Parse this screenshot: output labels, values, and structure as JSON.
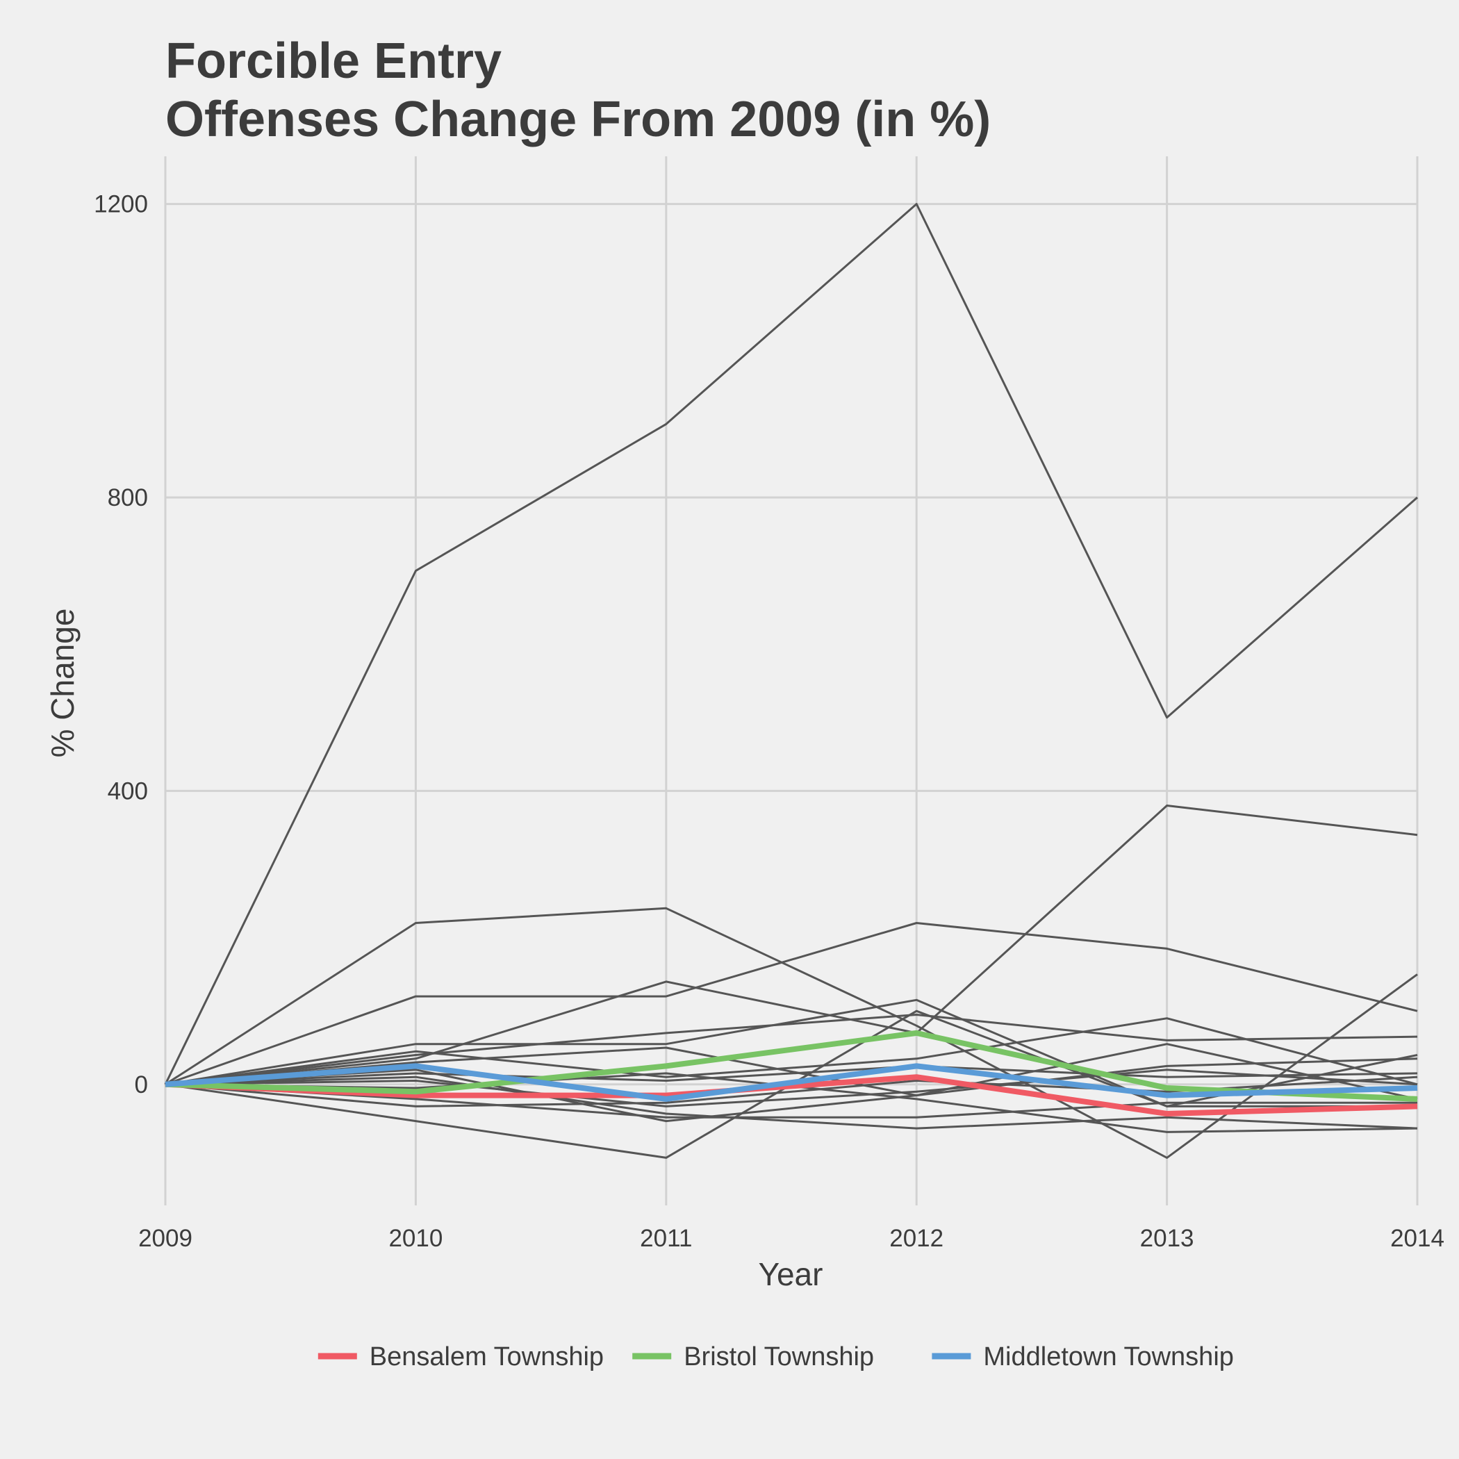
{
  "chart_data": {
    "type": "line",
    "title_lines": [
      "Forcible Entry",
      "Offenses Change From 2009 (in %)"
    ],
    "xlabel": "Year",
    "ylabel": "% Change",
    "x": [
      2009,
      2010,
      2011,
      2012,
      2013,
      2014
    ],
    "x_tick_labels": [
      "2009",
      "2010",
      "2011",
      "2012",
      "2013",
      "2014"
    ],
    "y_ticks": [
      0,
      400,
      800,
      1200
    ],
    "y_tick_labels": [
      "0",
      "400",
      "800",
      "1200"
    ],
    "ylim": [
      -165,
      1265
    ],
    "grid": true,
    "legend_position": "bottom",
    "colors": {
      "background": "#f0f0f0",
      "grid": "#d2d2d2",
      "other_series": "#555555",
      "text": "#3c3c3c"
    },
    "background_series": [
      {
        "values": [
          0,
          700,
          900,
          1200,
          500,
          800
        ]
      },
      {
        "values": [
          0,
          220,
          240,
          80,
          -100,
          150
        ]
      },
      {
        "values": [
          0,
          120,
          120,
          220,
          185,
          100
        ]
      },
      {
        "values": [
          0,
          35,
          140,
          70,
          380,
          340
        ]
      },
      {
        "values": [
          0,
          40,
          70,
          95,
          60,
          65
        ]
      },
      {
        "values": [
          0,
          55,
          55,
          115,
          -30,
          -30
        ]
      },
      {
        "values": [
          0,
          45,
          10,
          35,
          90,
          0
        ]
      },
      {
        "values": [
          0,
          20,
          -50,
          -15,
          55,
          -20
        ]
      },
      {
        "values": [
          0,
          -50,
          -100,
          100,
          -30,
          40
        ]
      },
      {
        "values": [
          0,
          10,
          -40,
          -60,
          -45,
          -60
        ]
      },
      {
        "values": [
          0,
          -20,
          -45,
          -45,
          -25,
          -25
        ]
      },
      {
        "values": [
          0,
          15,
          5,
          25,
          10,
          15
        ]
      },
      {
        "values": [
          0,
          -5,
          15,
          -20,
          -65,
          -60
        ]
      },
      {
        "values": [
          0,
          30,
          50,
          -15,
          25,
          35
        ]
      },
      {
        "values": [
          0,
          -30,
          -25,
          5,
          -10,
          10
        ]
      },
      {
        "values": [
          0,
          5,
          -30,
          -10,
          20,
          0
        ]
      }
    ],
    "series": [
      {
        "name": "Bensalem Township",
        "color": "#f05a64",
        "values": [
          0,
          -15,
          -15,
          10,
          -40,
          -30
        ]
      },
      {
        "name": "Bristol Township",
        "color": "#78c364",
        "values": [
          0,
          -10,
          25,
          70,
          -5,
          -20
        ]
      },
      {
        "name": "Middletown Township",
        "color": "#5a9bd7",
        "values": [
          0,
          25,
          -20,
          25,
          -15,
          -5
        ]
      }
    ]
  }
}
